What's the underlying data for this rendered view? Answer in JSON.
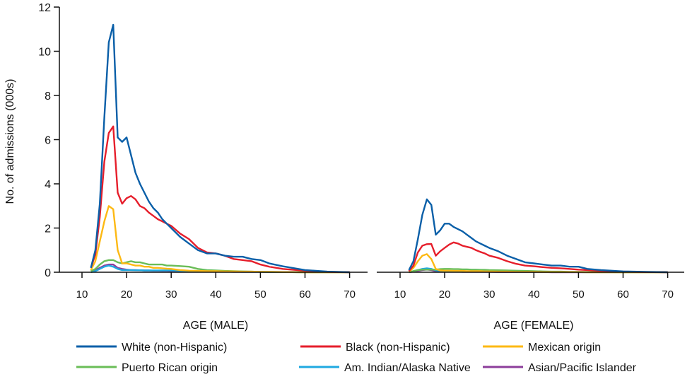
{
  "chart_data": [
    {
      "type": "line",
      "xlabel": "AGE (MALE)",
      "ylabel": "No. of admissions (000s)",
      "xlim": [
        10,
        70
      ],
      "ylim": [
        0,
        12
      ],
      "xticks": [
        10,
        20,
        30,
        40,
        50,
        60,
        70
      ],
      "yticks": [
        0,
        2,
        4,
        6,
        8,
        10,
        12
      ],
      "grid": false,
      "x": [
        12,
        13,
        14,
        15,
        16,
        17,
        18,
        19,
        20,
        21,
        22,
        23,
        24,
        25,
        26,
        27,
        28,
        29,
        30,
        32,
        34,
        36,
        38,
        40,
        42,
        44,
        46,
        48,
        50,
        52,
        55,
        60,
        65,
        70
      ],
      "series": [
        {
          "name": "White (non-Hispanic)",
          "color": "#0a5fa8",
          "values": [
            0.2,
            1.0,
            3.1,
            7.0,
            10.4,
            11.2,
            6.1,
            5.9,
            6.1,
            5.3,
            4.5,
            4.0,
            3.6,
            3.2,
            2.9,
            2.7,
            2.4,
            2.2,
            2.0,
            1.6,
            1.3,
            1.0,
            0.85,
            0.85,
            0.75,
            0.7,
            0.7,
            0.6,
            0.55,
            0.4,
            0.27,
            0.1,
            0.03,
            0
          ]
        },
        {
          "name": "Black (non-Hispanic)",
          "color": "#e61e2b",
          "values": [
            0.2,
            0.8,
            2.5,
            5.0,
            6.3,
            6.6,
            3.6,
            3.1,
            3.35,
            3.45,
            3.3,
            3.0,
            2.9,
            2.7,
            2.55,
            2.4,
            2.3,
            2.2,
            2.1,
            1.75,
            1.5,
            1.1,
            0.9,
            0.85,
            0.75,
            0.6,
            0.55,
            0.5,
            0.35,
            0.25,
            0.15,
            0.07,
            0.02,
            0
          ]
        },
        {
          "name": "Mexican origin",
          "color": "#fdb913",
          "values": [
            0.1,
            0.5,
            1.4,
            2.3,
            3.0,
            2.85,
            1.0,
            0.4,
            0.4,
            0.35,
            0.3,
            0.3,
            0.25,
            0.25,
            0.2,
            0.2,
            0.18,
            0.16,
            0.15,
            0.1,
            0.07,
            0.06,
            0.05,
            0.05,
            0.04,
            0.04,
            0.03,
            0.03,
            0.02,
            0.02,
            0.01,
            0,
            0,
            0
          ]
        },
        {
          "name": "Puerto Rican origin",
          "color": "#6abd57",
          "values": [
            0.05,
            0.15,
            0.35,
            0.5,
            0.55,
            0.55,
            0.45,
            0.4,
            0.45,
            0.5,
            0.45,
            0.45,
            0.4,
            0.35,
            0.35,
            0.35,
            0.35,
            0.3,
            0.3,
            0.28,
            0.25,
            0.15,
            0.1,
            0.08,
            0.06,
            0.05,
            0.04,
            0.03,
            0.02,
            0.02,
            0.01,
            0,
            0,
            0
          ]
        },
        {
          "name": "Am. Indian/Alaska Native",
          "color": "#1fa9e1",
          "values": [
            0,
            0.05,
            0.15,
            0.25,
            0.3,
            0.25,
            0.15,
            0.1,
            0.1,
            0.1,
            0.09,
            0.09,
            0.08,
            0.08,
            0.08,
            0.08,
            0.08,
            0.08,
            0.08,
            0.06,
            0.05,
            0.05,
            0.04,
            0.04,
            0.03,
            0.03,
            0.02,
            0.02,
            0.02,
            0.01,
            0.01,
            0,
            0,
            0
          ]
        },
        {
          "name": "Asian/Pacific Islander",
          "color": "#8c3e9b",
          "values": [
            0.05,
            0.1,
            0.2,
            0.3,
            0.35,
            0.35,
            0.2,
            0.15,
            0.12,
            0.1,
            0.1,
            0.09,
            0.08,
            0.08,
            0.07,
            0.07,
            0.06,
            0.06,
            0.05,
            0.05,
            0.04,
            0.04,
            0.03,
            0.03,
            0.03,
            0.02,
            0.02,
            0.02,
            0.02,
            0.01,
            0.01,
            0,
            0,
            0
          ]
        }
      ]
    },
    {
      "type": "line",
      "xlabel": "AGE (FEMALE)",
      "xlim": [
        10,
        70
      ],
      "ylim": [
        0,
        12
      ],
      "xticks": [
        10,
        20,
        30,
        40,
        50,
        60,
        70
      ],
      "grid": false,
      "x": [
        12,
        13,
        14,
        15,
        16,
        17,
        18,
        19,
        20,
        21,
        22,
        23,
        24,
        25,
        26,
        27,
        28,
        29,
        30,
        32,
        34,
        36,
        38,
        40,
        42,
        44,
        46,
        48,
        50,
        52,
        55,
        60,
        65,
        70
      ],
      "series": [
        {
          "name": "White (non-Hispanic)",
          "color": "#0a5fa8",
          "values": [
            0.1,
            0.5,
            1.5,
            2.6,
            3.3,
            3.05,
            1.7,
            1.9,
            2.2,
            2.2,
            2.05,
            1.95,
            1.85,
            1.7,
            1.55,
            1.4,
            1.3,
            1.2,
            1.1,
            0.95,
            0.75,
            0.6,
            0.45,
            0.4,
            0.35,
            0.3,
            0.3,
            0.25,
            0.25,
            0.15,
            0.1,
            0.04,
            0.02,
            0
          ]
        },
        {
          "name": "Black (non-Hispanic)",
          "color": "#e61e2b",
          "values": [
            0.05,
            0.3,
            0.9,
            1.2,
            1.27,
            1.28,
            0.75,
            0.95,
            1.1,
            1.25,
            1.35,
            1.3,
            1.2,
            1.15,
            1.1,
            1.0,
            0.92,
            0.85,
            0.75,
            0.65,
            0.5,
            0.38,
            0.3,
            0.27,
            0.23,
            0.2,
            0.18,
            0.15,
            0.12,
            0.1,
            0.06,
            0.03,
            0.01,
            0
          ]
        },
        {
          "name": "Mexican origin",
          "color": "#fdb913",
          "values": [
            0.02,
            0.2,
            0.5,
            0.75,
            0.82,
            0.6,
            0.15,
            0.08,
            0.07,
            0.07,
            0.06,
            0.06,
            0.06,
            0.05,
            0.05,
            0.05,
            0.05,
            0.04,
            0.04,
            0.03,
            0.03,
            0.02,
            0.02,
            0.02,
            0.01,
            0.01,
            0.01,
            0.01,
            0.01,
            0,
            0,
            0,
            0,
            0
          ]
        },
        {
          "name": "Puerto Rican origin",
          "color": "#6abd57",
          "values": [
            0,
            0.05,
            0.1,
            0.12,
            0.12,
            0.12,
            0.12,
            0.14,
            0.15,
            0.15,
            0.14,
            0.14,
            0.13,
            0.13,
            0.12,
            0.12,
            0.11,
            0.11,
            0.1,
            0.09,
            0.08,
            0.07,
            0.06,
            0.05,
            0.04,
            0.03,
            0.03,
            0.02,
            0.02,
            0.01,
            0.01,
            0,
            0,
            0
          ]
        },
        {
          "name": "Am. Indian/Alaska Native",
          "color": "#1fa9e1",
          "values": [
            0,
            0.05,
            0.1,
            0.15,
            0.18,
            0.15,
            0.08,
            0.06,
            0.05,
            0.05,
            0.05,
            0.05,
            0.05,
            0.04,
            0.04,
            0.04,
            0.04,
            0.04,
            0.03,
            0.03,
            0.03,
            0.02,
            0.02,
            0.02,
            0.02,
            0.01,
            0.01,
            0.01,
            0.01,
            0,
            0,
            0,
            0,
            0
          ]
        },
        {
          "name": "Asian/Pacific Islander",
          "color": "#8c3e9b",
          "values": [
            0,
            0.03,
            0.06,
            0.1,
            0.12,
            0.1,
            0.05,
            0.04,
            0.03,
            0.03,
            0.03,
            0.03,
            0.02,
            0.02,
            0.02,
            0.02,
            0.02,
            0.02,
            0.02,
            0.01,
            0.01,
            0.01,
            0.01,
            0.01,
            0.01,
            0,
            0,
            0,
            0,
            0,
            0,
            0,
            0,
            0
          ]
        }
      ]
    }
  ]
}
